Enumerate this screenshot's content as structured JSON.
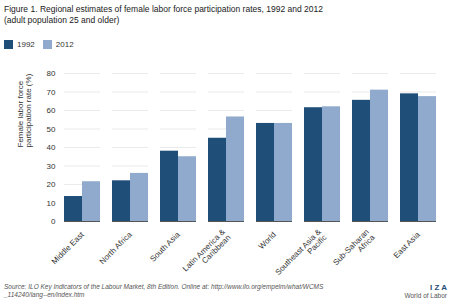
{
  "chart_data": {
    "type": "bar",
    "title": "Figure 1. Regional estimates of female labor force participation rates, 1992 and 2012",
    "subtitle": "(adult population 25 and older)",
    "categories": [
      "Middle East",
      "North Africa",
      "South Asia",
      "Latin America &\nCaribbean",
      "World",
      "Southeast Asia &\nPacific",
      "Sub-Saharan\nAfrica",
      "East Asia"
    ],
    "series": [
      {
        "name": "1992",
        "color": "#1f4e79",
        "values": [
          13.5,
          22.0,
          38.0,
          45.0,
          53.0,
          61.5,
          65.5,
          69.0
        ]
      },
      {
        "name": "2012",
        "color": "#8faacc",
        "values": [
          21.5,
          26.0,
          35.0,
          56.5,
          53.0,
          62.0,
          71.0,
          67.5
        ]
      }
    ],
    "ylabel": "Female labor force\nparticipation rate (%)",
    "ylim": [
      0,
      80
    ],
    "yticks": [
      0,
      10,
      20,
      30,
      40,
      50,
      60,
      70,
      80
    ],
    "grid": true,
    "legend": "upper left",
    "annotations": [
      "Source: ILO Key Indicators of the Labour Market, 8th Edition. Online at: http://www.ilo.org/empelm/what/WCMS\n_114240/lang--en/index.htm",
      "I Z A",
      "World of Labor"
    ]
  }
}
